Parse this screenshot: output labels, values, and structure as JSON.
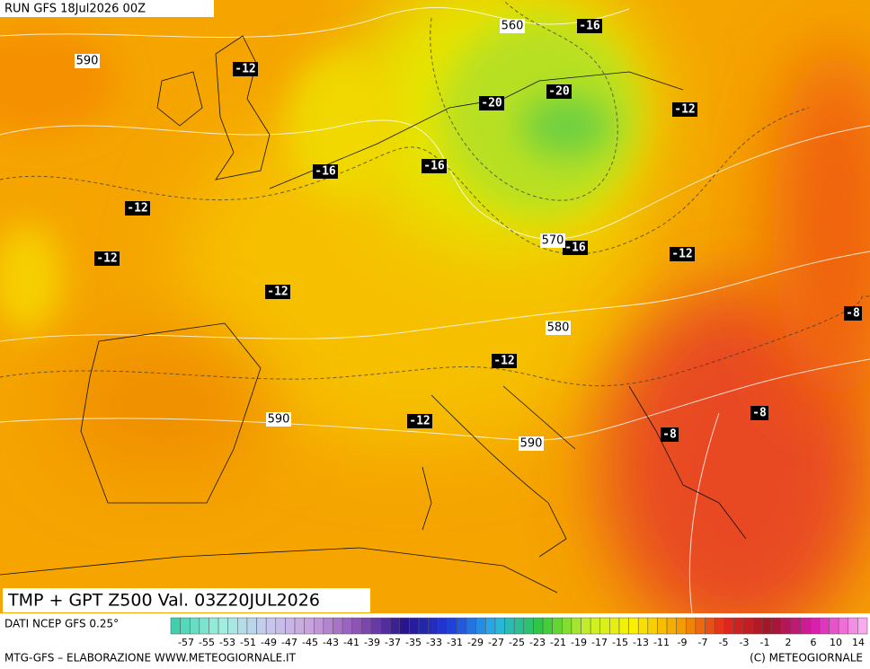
{
  "header": {
    "run": "RUN GFS 18Jul2026 00Z",
    "title": "TMP + GPT Z500 Val. 03Z20JUL2026"
  },
  "temperature_labels": [
    "-16",
    "-12",
    "-20",
    "-20",
    "-12",
    "-16",
    "-16",
    "-12",
    "-12",
    "-16",
    "-12",
    "-12",
    "-8",
    "-12",
    "-12",
    "-8",
    "-8"
  ],
  "height_labels": [
    "560",
    "590",
    "570",
    "580",
    "590",
    "590"
  ],
  "legend": {
    "source": "DATI NCEP GFS 0.25°",
    "scale": [
      "-57",
      "-55",
      "-53",
      "-51",
      "-49",
      "-47",
      "-45",
      "-43",
      "-41",
      "-39",
      "-37",
      "-35",
      "-33",
      "-31",
      "-29",
      "-27",
      "-25",
      "-23",
      "-21",
      "-19",
      "-17",
      "-15",
      "-13",
      "-11",
      "-9",
      "-7",
      "-5",
      "-3",
      "-1",
      "2",
      "6",
      "10",
      "14"
    ]
  },
  "footer": {
    "left": "MTG-GFS – ELABORAZIONE WWW.METEOGIORNALE.IT",
    "right": "(C) METEOGIORNALE"
  }
}
